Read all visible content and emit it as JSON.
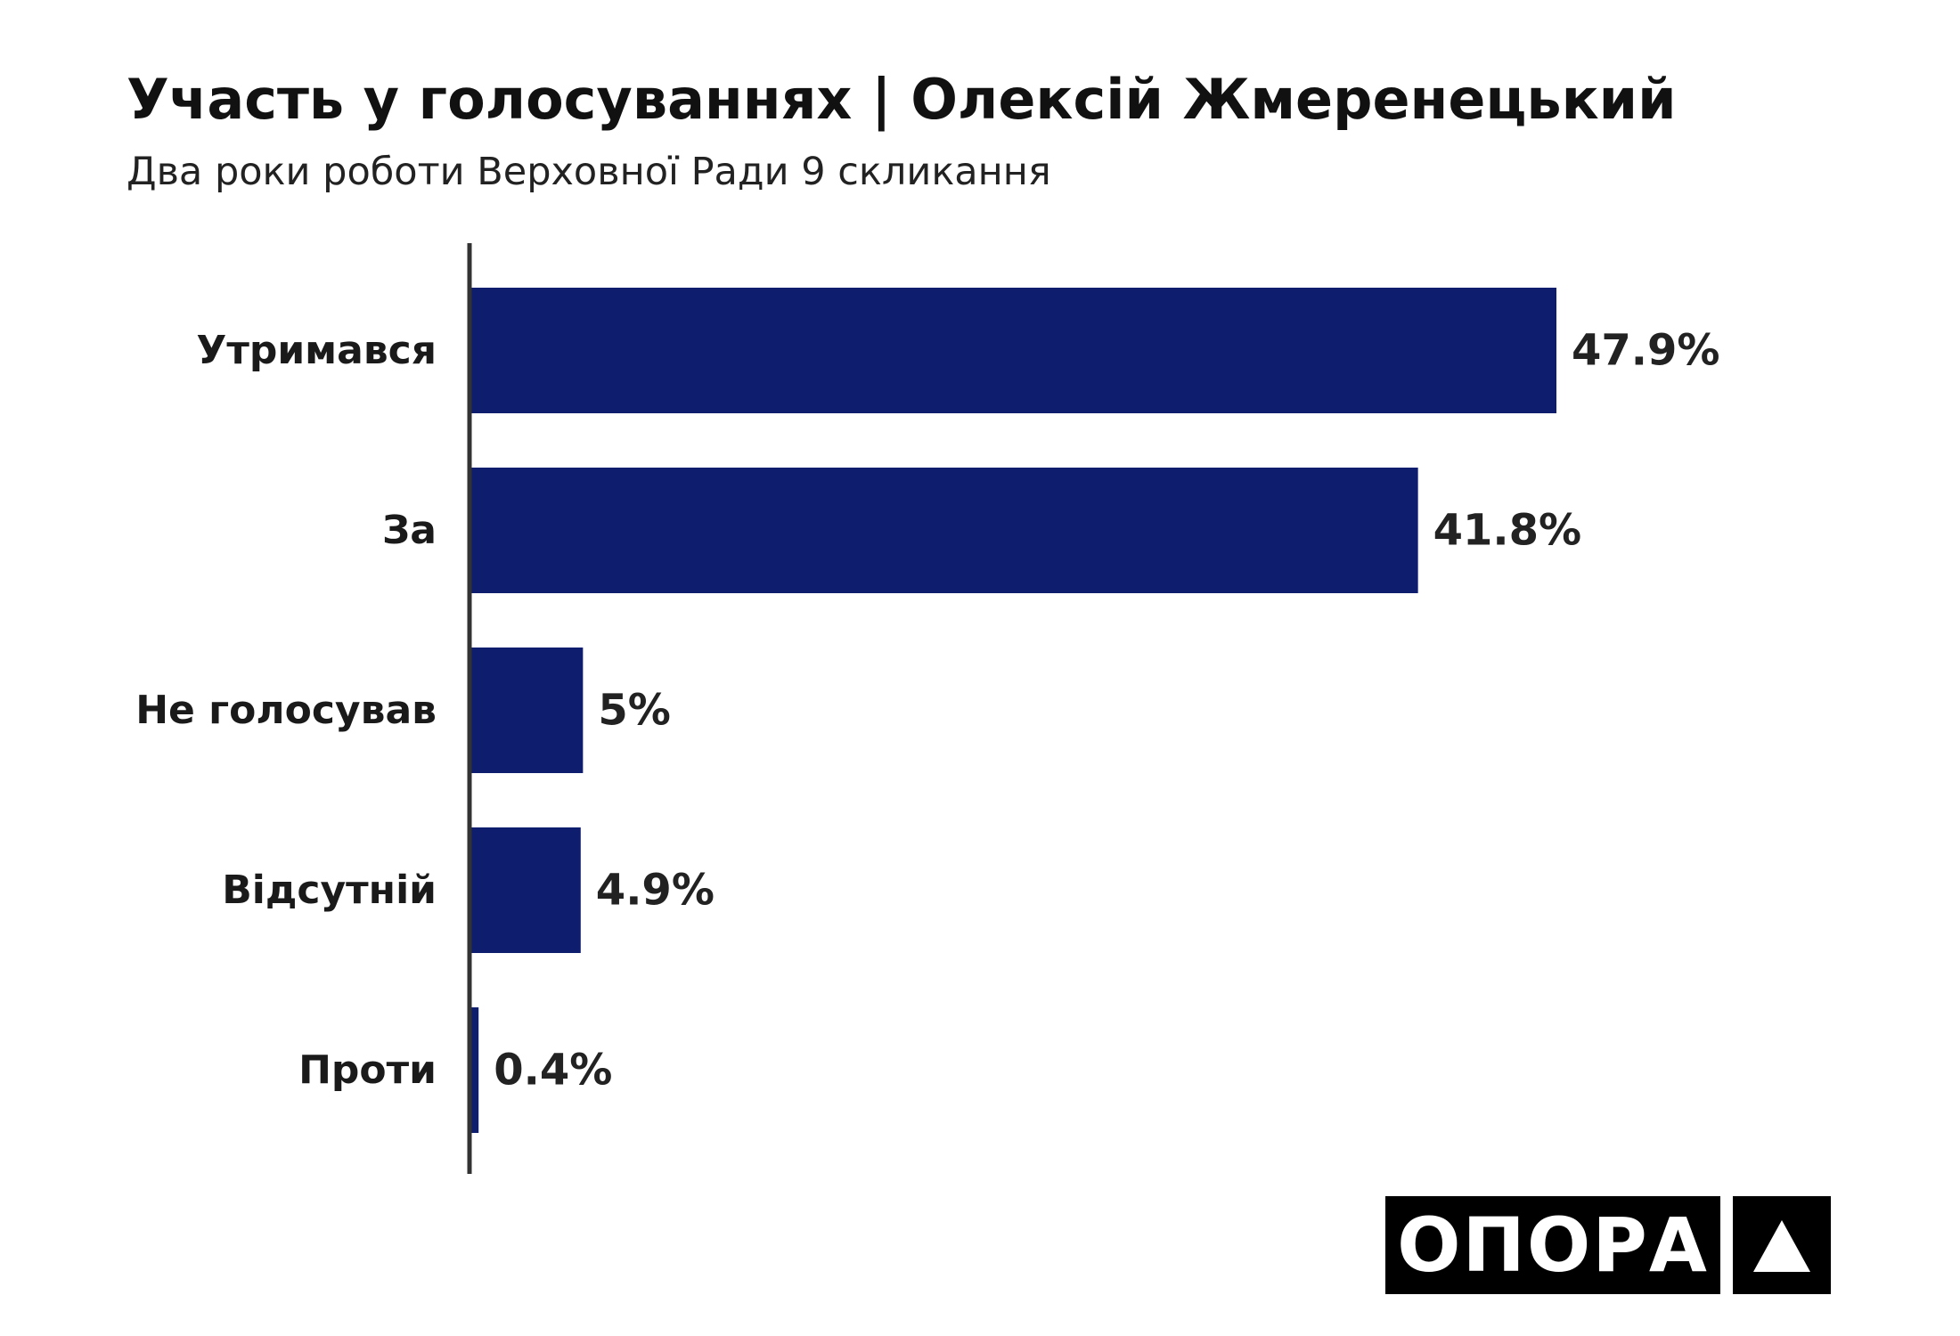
{
  "chart_data": {
    "type": "bar",
    "orientation": "horizontal",
    "title": "Участь у голосуваннях | Олексій Жмеренецький",
    "subtitle": "Два роки роботи Верховної Ради 9 скликання",
    "categories": [
      "Утримався",
      "За",
      "Не голосував",
      "Відсутній",
      "Проти"
    ],
    "values": [
      47.9,
      41.8,
      5,
      4.9,
      0.4
    ],
    "value_labels": [
      "47.9%",
      "41.8%",
      "5%",
      "4.9%",
      "0.4%"
    ],
    "xlim": [
      0,
      55
    ],
    "grid": false,
    "bar_color": "#0f1d6e"
  },
  "brand": {
    "name": "ОПОРА",
    "icon": "triangle-icon"
  }
}
